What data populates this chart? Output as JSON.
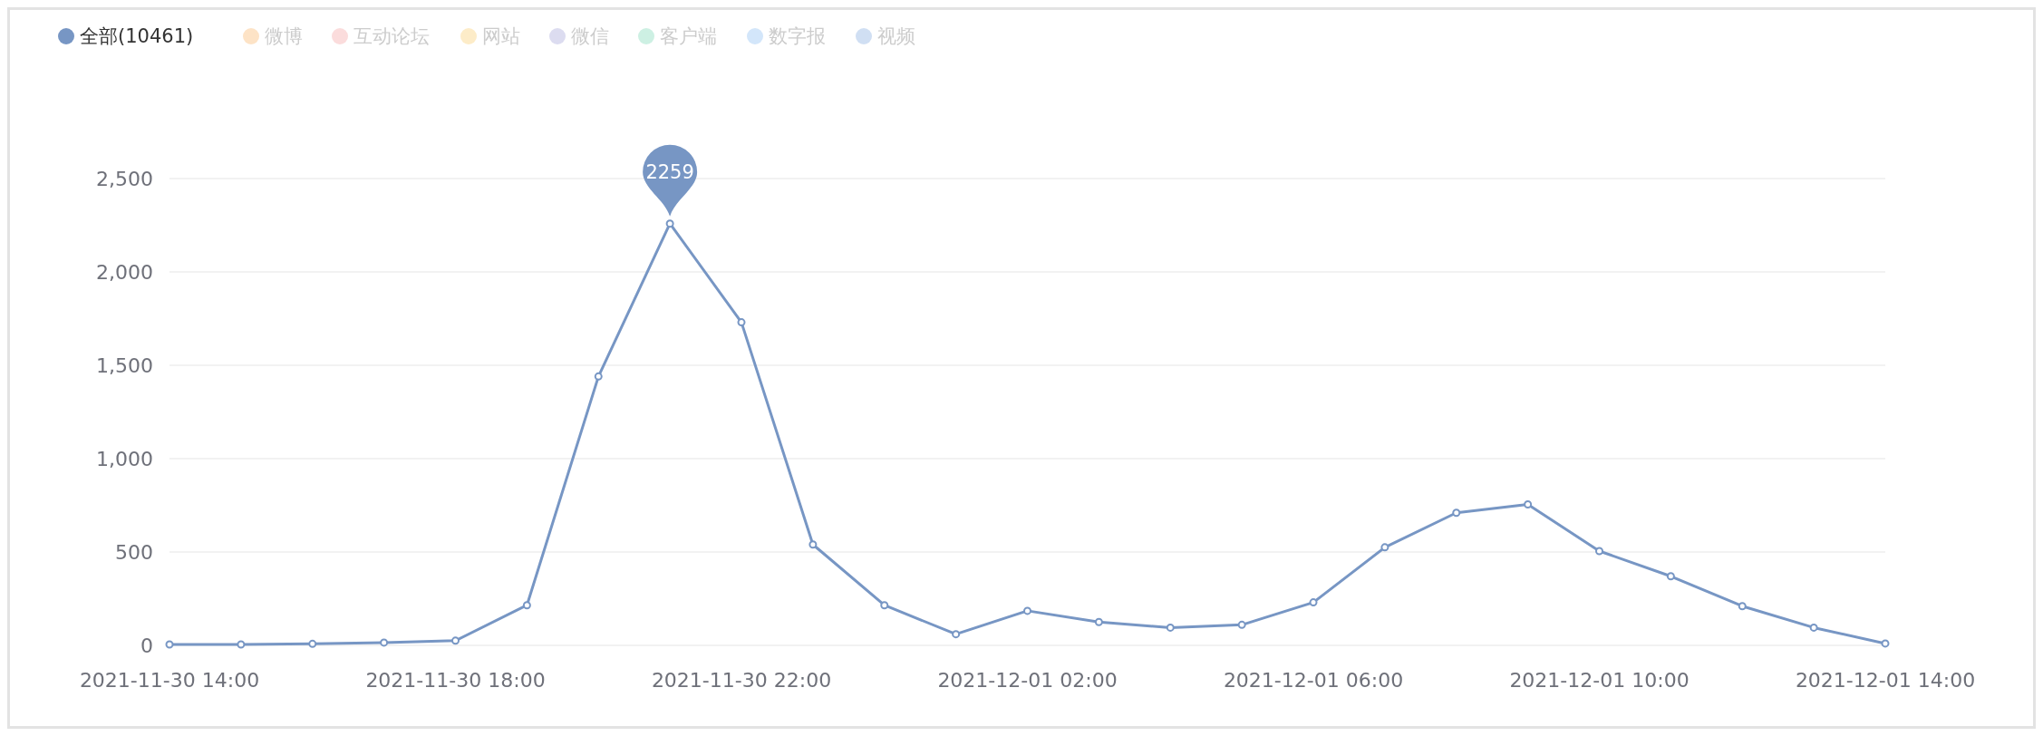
{
  "chart_data": {
    "type": "line",
    "categories": [
      "2021-11-30 14:00",
      null,
      null,
      null,
      "2021-11-30 18:00",
      null,
      null,
      null,
      "2021-11-30 22:00",
      null,
      null,
      null,
      "2021-12-01 02:00",
      null,
      null,
      null,
      "2021-12-01 06:00",
      null,
      null,
      null,
      "2021-12-01 10:00",
      null,
      null,
      null,
      "2021-12-01 14:00"
    ],
    "series": [
      {
        "name": "全部(10461)",
        "color": "#7796c4",
        "values": [
          5,
          5,
          8,
          15,
          25,
          215,
          1440,
          2259,
          1730,
          540,
          215,
          60,
          185,
          125,
          95,
          110,
          230,
          525,
          710,
          755,
          505,
          370,
          210,
          95,
          10
        ]
      },
      {
        "name": "微博",
        "color": "#fde3c6",
        "values": [
          null,
          null,
          null,
          null,
          null,
          null,
          null,
          null,
          null,
          null,
          null,
          null,
          null,
          null,
          null,
          null,
          null,
          null,
          null,
          null,
          null,
          null,
          null,
          null,
          null
        ]
      },
      {
        "name": "互动论坛",
        "color": "#fbdcdc",
        "values": [
          null,
          null,
          null,
          null,
          null,
          null,
          null,
          null,
          null,
          null,
          null,
          null,
          null,
          null,
          null,
          null,
          null,
          null,
          null,
          null,
          null,
          null,
          null,
          null,
          null
        ]
      },
      {
        "name": "网站",
        "color": "#fdecc8",
        "values": [
          null,
          null,
          null,
          null,
          null,
          null,
          null,
          null,
          null,
          null,
          null,
          null,
          null,
          null,
          null,
          null,
          null,
          null,
          null,
          null,
          null,
          null,
          null,
          null,
          null
        ]
      },
      {
        "name": "微信",
        "color": "#dcdcf0",
        "values": [
          null,
          null,
          null,
          null,
          null,
          null,
          null,
          null,
          null,
          null,
          null,
          null,
          null,
          null,
          null,
          null,
          null,
          null,
          null,
          null,
          null,
          null,
          null,
          null,
          null
        ]
      },
      {
        "name": "客户端",
        "color": "#cdf0e3",
        "values": [
          null,
          null,
          null,
          null,
          null,
          null,
          null,
          null,
          null,
          null,
          null,
          null,
          null,
          null,
          null,
          null,
          null,
          null,
          null,
          null,
          null,
          null,
          null,
          null,
          null
        ]
      },
      {
        "name": "数字报",
        "color": "#d3e6fa",
        "values": [
          null,
          null,
          null,
          null,
          null,
          null,
          null,
          null,
          null,
          null,
          null,
          null,
          null,
          null,
          null,
          null,
          null,
          null,
          null,
          null,
          null,
          null,
          null,
          null,
          null
        ]
      },
      {
        "name": "视频",
        "color": "#d0dff3",
        "values": [
          null,
          null,
          null,
          null,
          null,
          null,
          null,
          null,
          null,
          null,
          null,
          null,
          null,
          null,
          null,
          null,
          null,
          null,
          null,
          null,
          null,
          null,
          null,
          null,
          null
        ]
      }
    ],
    "annotations": [
      {
        "text": "2259",
        "y": 2259
      }
    ],
    "ylim": [
      0,
      2500
    ],
    "yticks": [
      0,
      {
        "value": 500,
        "label": "500"
      },
      {
        "value": 1000,
        "label": "1,000"
      },
      {
        "value": 1500,
        "label": "1,500"
      },
      {
        "value": 2000,
        "label": "2,000"
      },
      {
        "value": 2500,
        "label": "2,500"
      }
    ],
    "grid": "y",
    "legend": "top left",
    "marker": "circle",
    "line_style": "solid"
  }
}
